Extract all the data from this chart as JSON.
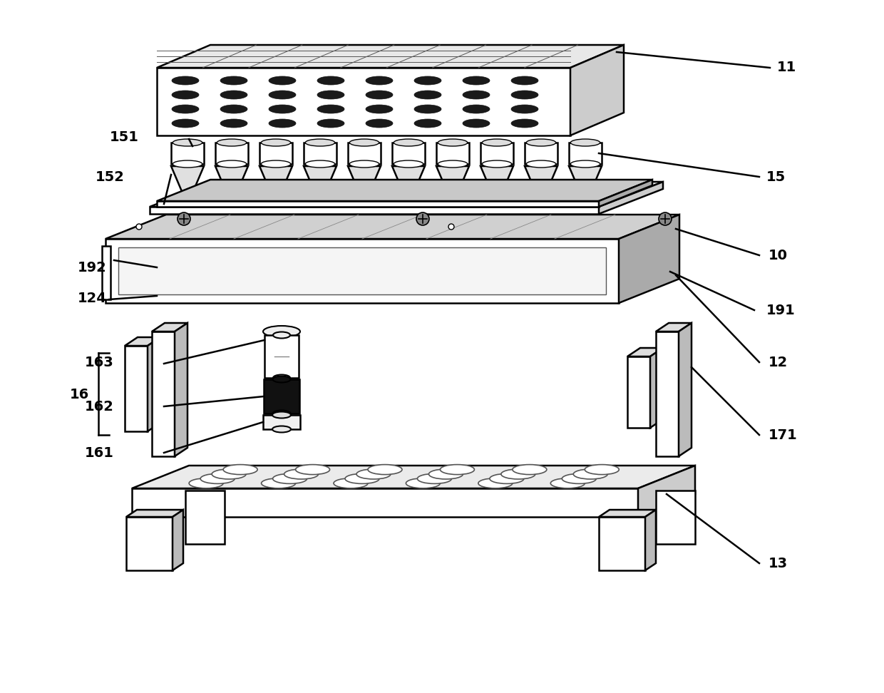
{
  "fig_width": 12.4,
  "fig_height": 9.72,
  "bg_color": "#ffffff",
  "line_color": "#000000",
  "lw": 1.8,
  "label_fontsize": 14
}
